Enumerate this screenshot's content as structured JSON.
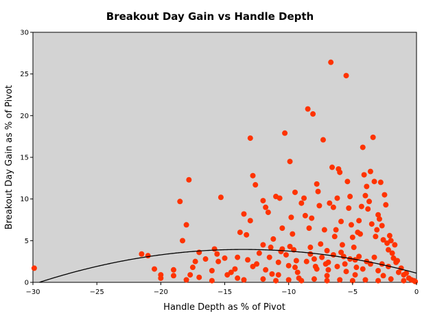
{
  "chart_data": {
    "type": "scatter",
    "title": "Breakout Day Gain vs Handle Depth",
    "xlabel": "Handle Depth as % of Pivot",
    "ylabel": "Breakout Day Gain as % of Pivot",
    "xlim": [
      -30,
      0
    ],
    "ylim": [
      0,
      30
    ],
    "x_ticks": [
      -30,
      -25,
      -20,
      -15,
      -10,
      -5,
      0
    ],
    "x_tick_labels": [
      "−30",
      "−25",
      "−20",
      "−15",
      "−10",
      "−5",
      "0"
    ],
    "y_ticks": [
      0,
      5,
      10,
      15,
      20,
      25,
      30
    ],
    "y_tick_labels": [
      "0",
      "5",
      "10",
      "15",
      "20",
      "25",
      "30"
    ],
    "grid": false,
    "colors": {
      "plot_background": "#d3d3d3",
      "point": "#ff3300",
      "trend_line": "#000000"
    },
    "trend_line": {
      "type": "quadratic",
      "coefficients": [
        1.1,
        -0.42,
        -0.0155
      ]
    },
    "points": [
      [
        -29.9,
        1.7
      ],
      [
        -21.5,
        3.4
      ],
      [
        -21.0,
        3.2
      ],
      [
        -20.5,
        1.6
      ],
      [
        -20.0,
        0.9
      ],
      [
        -20.0,
        0.5
      ],
      [
        -19.0,
        0.8
      ],
      [
        -19.0,
        1.5
      ],
      [
        -18.5,
        9.7
      ],
      [
        -18.3,
        5.0
      ],
      [
        -18.0,
        6.9
      ],
      [
        -17.8,
        12.3
      ],
      [
        -18.0,
        0.3
      ],
      [
        -17.7,
        0.9
      ],
      [
        -17.5,
        1.8
      ],
      [
        -17.3,
        2.5
      ],
      [
        -17.0,
        3.6
      ],
      [
        -17.0,
        0.6
      ],
      [
        -16.5,
        2.8
      ],
      [
        -16.0,
        1.4
      ],
      [
        -15.8,
        4.0
      ],
      [
        -15.5,
        2.5
      ],
      [
        -15.3,
        10.2
      ],
      [
        -15.0,
        2.9
      ],
      [
        -14.5,
        1.2
      ],
      [
        -14.0,
        0.5
      ],
      [
        -14.0,
        3.0
      ],
      [
        -13.8,
        6.0
      ],
      [
        -13.5,
        8.2
      ],
      [
        -13.3,
        5.7
      ],
      [
        -13.0,
        17.3
      ],
      [
        -13.0,
        7.4
      ],
      [
        -12.8,
        12.8
      ],
      [
        -12.6,
        11.7
      ],
      [
        -12.5,
        2.2
      ],
      [
        -12.3,
        3.5
      ],
      [
        -12.0,
        4.5
      ],
      [
        -12.0,
        9.8
      ],
      [
        -11.8,
        9.0
      ],
      [
        -11.6,
        8.4
      ],
      [
        -11.5,
        3.0
      ],
      [
        -11.3,
        1.0
      ],
      [
        -11.2,
        5.2
      ],
      [
        -11.0,
        10.3
      ],
      [
        -10.8,
        2.4
      ],
      [
        -10.7,
        10.1
      ],
      [
        -10.5,
        6.5
      ],
      [
        -10.5,
        4.0
      ],
      [
        -10.3,
        17.9
      ],
      [
        -10.2,
        3.3
      ],
      [
        -10.0,
        2.0
      ],
      [
        -9.9,
        14.5
      ],
      [
        -9.8,
        7.8
      ],
      [
        -9.7,
        5.8
      ],
      [
        -9.6,
        3.9
      ],
      [
        -9.5,
        10.8
      ],
      [
        -9.4,
        2.6
      ],
      [
        -9.3,
        1.2
      ],
      [
        -9.2,
        0.5
      ],
      [
        -9.0,
        9.5
      ],
      [
        -8.8,
        10.1
      ],
      [
        -8.7,
        8.0
      ],
      [
        -8.5,
        20.8
      ],
      [
        -8.4,
        6.5
      ],
      [
        -8.3,
        4.2
      ],
      [
        -8.2,
        7.7
      ],
      [
        -8.1,
        20.2
      ],
      [
        -8.0,
        2.8
      ],
      [
        -7.9,
        1.9
      ],
      [
        -7.8,
        11.8
      ],
      [
        -7.7,
        10.9
      ],
      [
        -7.6,
        9.2
      ],
      [
        -7.5,
        4.6
      ],
      [
        -7.4,
        3.0
      ],
      [
        -7.3,
        17.1
      ],
      [
        -7.2,
        6.3
      ],
      [
        -7.1,
        2.2
      ],
      [
        -7.0,
        0.8
      ],
      [
        -6.9,
        1.5
      ],
      [
        -6.8,
        9.5
      ],
      [
        -6.7,
        26.4
      ],
      [
        -6.6,
        13.8
      ],
      [
        -6.5,
        9.0
      ],
      [
        -6.4,
        5.5
      ],
      [
        -6.3,
        6.3
      ],
      [
        -6.2,
        10.1
      ],
      [
        -6.1,
        13.6
      ],
      [
        -6.0,
        13.2
      ],
      [
        -5.9,
        7.3
      ],
      [
        -5.8,
        4.5
      ],
      [
        -5.7,
        3.1
      ],
      [
        -5.6,
        2.2
      ],
      [
        -5.5,
        24.8
      ],
      [
        -5.4,
        12.1
      ],
      [
        -5.3,
        8.9
      ],
      [
        -5.2,
        10.3
      ],
      [
        -5.1,
        6.9
      ],
      [
        -5.0,
        5.4
      ],
      [
        -4.9,
        4.2
      ],
      [
        -4.8,
        2.7
      ],
      [
        -4.7,
        1.8
      ],
      [
        -4.6,
        6.0
      ],
      [
        -4.5,
        7.4
      ],
      [
        -4.4,
        5.8
      ],
      [
        -4.3,
        9.1
      ],
      [
        -4.2,
        16.2
      ],
      [
        -4.1,
        12.9
      ],
      [
        -4.0,
        10.4
      ],
      [
        -3.9,
        11.5
      ],
      [
        -3.8,
        8.8
      ],
      [
        -3.7,
        9.7
      ],
      [
        -3.6,
        13.3
      ],
      [
        -3.5,
        7.0
      ],
      [
        -3.4,
        17.4
      ],
      [
        -3.3,
        12.1
      ],
      [
        -3.2,
        5.5
      ],
      [
        -3.1,
        6.3
      ],
      [
        -3.0,
        8.1
      ],
      [
        -2.9,
        7.6
      ],
      [
        -2.8,
        12.0
      ],
      [
        -2.7,
        6.8
      ],
      [
        -2.6,
        5.1
      ],
      [
        -2.5,
        10.5
      ],
      [
        -2.4,
        9.3
      ],
      [
        -2.3,
        4.7
      ],
      [
        -2.2,
        3.9
      ],
      [
        -2.1,
        5.6
      ],
      [
        -2.0,
        5.0
      ],
      [
        -1.9,
        3.5
      ],
      [
        -1.8,
        2.9
      ],
      [
        -1.7,
        4.5
      ],
      [
        -1.6,
        2.4
      ],
      [
        -1.5,
        2.6
      ],
      [
        -1.4,
        1.2
      ],
      [
        -1.2,
        1.7
      ],
      [
        -1.0,
        0.9
      ],
      [
        -0.8,
        1.1
      ],
      [
        -0.6,
        0.5
      ],
      [
        -0.4,
        0.3
      ],
      [
        -0.2,
        0.2
      ],
      [
        -0.1,
        0.1
      ],
      [
        -11.0,
        0.2
      ],
      [
        -12.0,
        0.4
      ],
      [
        -13.5,
        0.3
      ],
      [
        -14.8,
        0.9
      ],
      [
        -16.0,
        0.2
      ],
      [
        -10.0,
        0.3
      ],
      [
        -9.0,
        0.2
      ],
      [
        -8.0,
        0.4
      ],
      [
        -7.0,
        0.2
      ],
      [
        -6.0,
        0.3
      ],
      [
        -5.0,
        0.2
      ],
      [
        -4.0,
        0.3
      ],
      [
        -3.0,
        0.2
      ],
      [
        -2.0,
        0.4
      ],
      [
        -1.0,
        0.2
      ],
      [
        -9.5,
        1.8
      ],
      [
        -8.6,
        2.5
      ],
      [
        -7.8,
        1.6
      ],
      [
        -6.9,
        2.4
      ],
      [
        -6.2,
        1.9
      ],
      [
        -5.5,
        1.3
      ],
      [
        -4.8,
        0.9
      ],
      [
        -4.2,
        1.6
      ],
      [
        -3.6,
        2.2
      ],
      [
        -3.0,
        1.4
      ],
      [
        -2.6,
        0.8
      ],
      [
        -2.2,
        1.9
      ],
      [
        -11.8,
        1.5
      ],
      [
        -10.8,
        0.9
      ],
      [
        -12.8,
        1.9
      ],
      [
        -13.2,
        2.7
      ],
      [
        -14.2,
        1.6
      ],
      [
        -15.6,
        3.4
      ],
      [
        -8.3,
        3.4
      ],
      [
        -7.0,
        3.8
      ],
      [
        -6.5,
        3.3
      ],
      [
        -5.9,
        3.6
      ],
      [
        -5.2,
        2.8
      ],
      [
        -4.5,
        3.1
      ],
      [
        -3.9,
        2.5
      ],
      [
        -3.3,
        3.0
      ],
      [
        -2.7,
        2.2
      ],
      [
        -9.9,
        4.3
      ],
      [
        -10.6,
        3.7
      ],
      [
        -11.4,
        4.2
      ]
    ]
  }
}
